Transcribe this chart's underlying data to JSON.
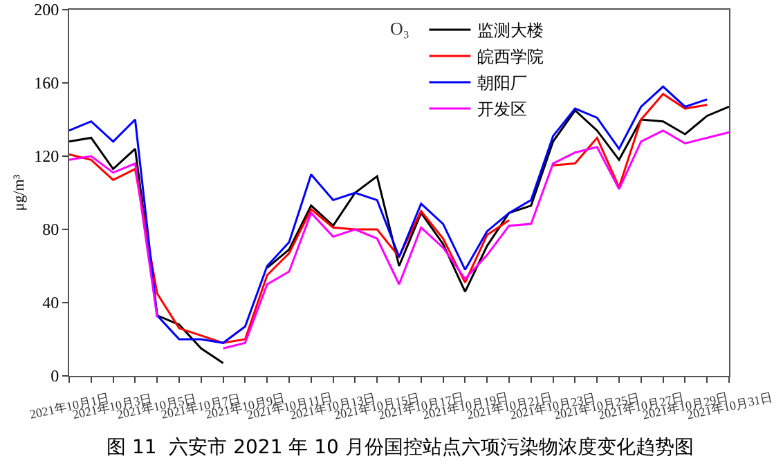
{
  "chart_data": {
    "type": "line",
    "title": "O₃",
    "ylabel": "μg/m³",
    "annotations": [
      "图 11  六安市 2021 年 10 月份国控站点六项污染物浓度变化趋势图"
    ],
    "x": [
      "2021-10-01",
      "2021-10-02",
      "2021-10-03",
      "2021-10-04",
      "2021-10-05",
      "2021-10-06",
      "2021-10-07",
      "2021-10-08",
      "2021-10-09",
      "2021-10-10",
      "2021-10-11",
      "2021-10-12",
      "2021-10-13",
      "2021-10-14",
      "2021-10-15",
      "2021-10-16",
      "2021-10-17",
      "2021-10-18",
      "2021-10-19",
      "2021-10-20",
      "2021-10-21",
      "2021-10-22",
      "2021-10-23",
      "2021-10-24",
      "2021-10-25",
      "2021-10-26",
      "2021-10-27",
      "2021-10-28",
      "2021-10-29",
      "2021-10-30",
      "2021-10-31"
    ],
    "series": [
      {
        "name": "监测大楼",
        "color": "#000000",
        "values": [
          128,
          130,
          113,
          124,
          33,
          28,
          15,
          7,
          null,
          59,
          69,
          93,
          82,
          100,
          109,
          60,
          89,
          72,
          46,
          71,
          89,
          93,
          128,
          145,
          134,
          118,
          140,
          139,
          132,
          142,
          147
        ]
      },
      {
        "name": "皖西学院",
        "color": "#ff0000",
        "values": [
          121,
          118,
          107,
          113,
          45,
          26,
          22,
          18,
          20,
          55,
          67,
          91,
          81,
          80,
          80,
          65,
          90,
          75,
          51,
          77,
          85,
          null,
          115,
          116,
          130,
          103,
          140,
          154,
          146,
          148,
          null
        ]
      },
      {
        "name": "朝阳厂",
        "color": "#0000ff",
        "values": [
          134,
          139,
          128,
          140,
          33,
          20,
          20,
          18,
          27,
          60,
          73,
          110,
          96,
          100,
          96,
          65,
          94,
          83,
          58,
          79,
          89,
          96,
          131,
          146,
          141,
          124,
          147,
          158,
          147,
          151,
          null
        ]
      },
      {
        "name": "开发区",
        "color": "#ff00ff",
        "values": [
          118,
          120,
          111,
          116,
          32,
          null,
          null,
          15,
          18,
          50,
          57,
          89,
          76,
          80,
          75,
          50,
          81,
          70,
          53,
          66,
          82,
          83,
          116,
          122,
          125,
          102,
          128,
          134,
          127,
          130,
          133
        ]
      }
    ],
    "xlim": [
      "2021-10-01",
      "2021-10-31"
    ],
    "xticks": [
      {
        "value": "2021-10-01",
        "label": "2021年10月1日"
      },
      {
        "value": "2021-10-02",
        "label": null
      },
      {
        "value": "2021-10-03",
        "label": "2021年10月3日"
      },
      {
        "value": "2021-10-04",
        "label": null
      },
      {
        "value": "2021-10-05",
        "label": "2021年10月5日"
      },
      {
        "value": "2021-10-06",
        "label": null
      },
      {
        "value": "2021-10-07",
        "label": "2021年10月7日"
      },
      {
        "value": "2021-10-08",
        "label": null
      },
      {
        "value": "2021-10-09",
        "label": "2021年10月9日"
      },
      {
        "value": "2021-10-10",
        "label": null
      },
      {
        "value": "2021-10-11",
        "label": "2021年10月11日"
      },
      {
        "value": "2021-10-12",
        "label": null
      },
      {
        "value": "2021-10-13",
        "label": "2021年10月13日"
      },
      {
        "value": "2021-10-14",
        "label": null
      },
      {
        "value": "2021-10-15",
        "label": "2021年10月15日"
      },
      {
        "value": "2021-10-16",
        "label": null
      },
      {
        "value": "2021-10-17",
        "label": "2021年10月17日"
      },
      {
        "value": "2021-10-18",
        "label": null
      },
      {
        "value": "2021-10-19",
        "label": "2021年10月19日"
      },
      {
        "value": "2021-10-20",
        "label": null
      },
      {
        "value": "2021-10-21",
        "label": "2021年10月21日"
      },
      {
        "value": "2021-10-22",
        "label": null
      },
      {
        "value": "2021-10-23",
        "label": "2021年10月23日"
      },
      {
        "value": "2021-10-24",
        "label": null
      },
      {
        "value": "2021-10-25",
        "label": "2021年10月25日"
      },
      {
        "value": "2021-10-26",
        "label": null
      },
      {
        "value": "2021-10-27",
        "label": "2021年10月27日"
      },
      {
        "value": "2021-10-28",
        "label": null
      },
      {
        "value": "2021-10-29",
        "label": "2021年10月29日"
      },
      {
        "value": "2021-10-30",
        "label": null
      },
      {
        "value": "2021-10-31",
        "label": "2021年10月31日"
      }
    ],
    "ylim": [
      0,
      200
    ],
    "yticks": [
      0,
      40,
      80,
      120,
      160,
      200
    ],
    "grid": false,
    "legend": "top right",
    "marker": "none",
    "line_style": "solid"
  }
}
